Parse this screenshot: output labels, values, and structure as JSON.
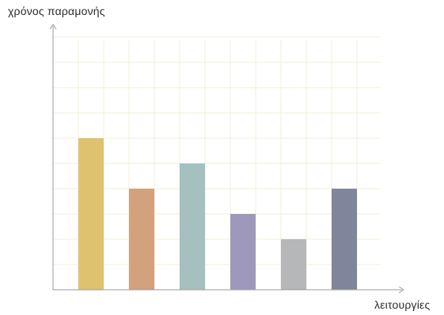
{
  "chart_data": {
    "type": "bar",
    "title": "",
    "xlabel": "λειτουργίες",
    "ylabel": "χρόνος παραμονής",
    "categories": [
      "",
      "",
      "",
      "",
      "",
      ""
    ],
    "values": [
      6,
      4,
      5,
      3,
      2,
      4
    ],
    "ylim": [
      0,
      10
    ],
    "grid": true,
    "tick_labels_shown": false,
    "colors": [
      "#dfc170",
      "#d3a17c",
      "#a4c1bf",
      "#9e98bc",
      "#b5b7b9",
      "#7f869c"
    ],
    "grid_color": "#f3efd9",
    "axis_color": "#9a9a9a"
  }
}
